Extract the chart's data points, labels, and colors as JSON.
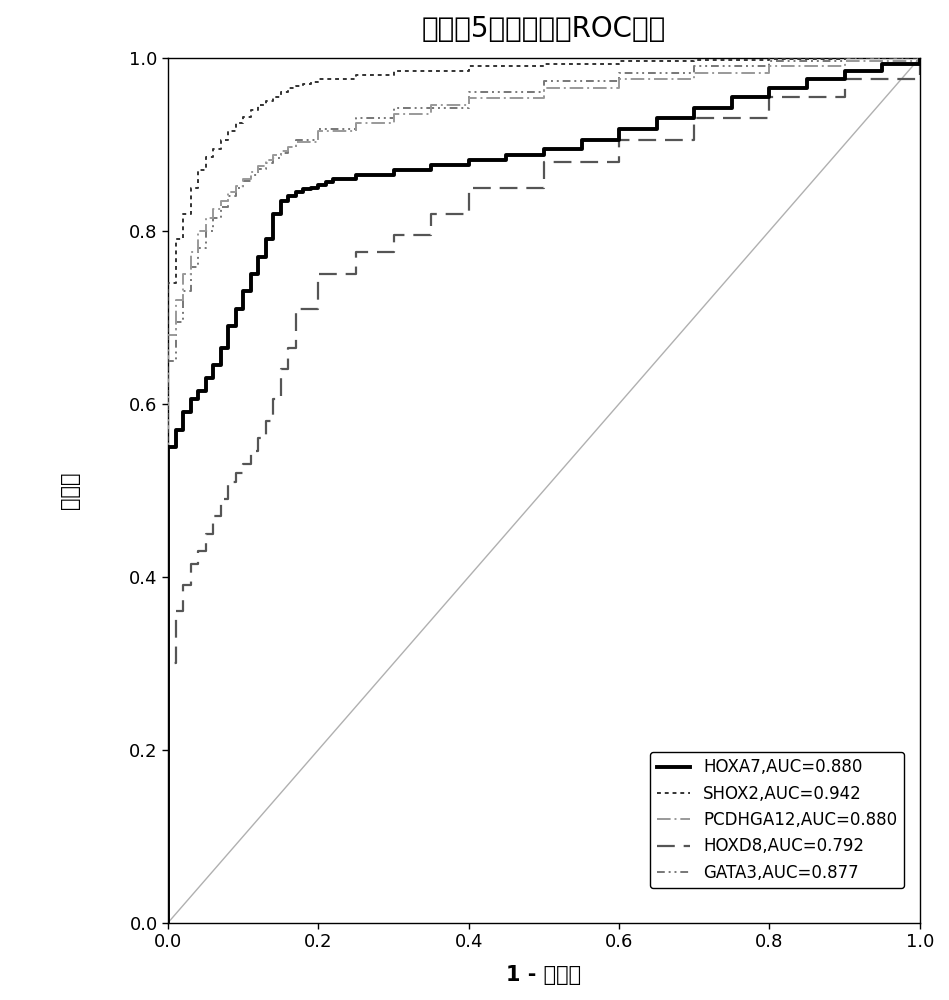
{
  "title": "组织中5个标志物的ROC曲线",
  "xlabel": "1 - 特异性",
  "ylabel_chars": [
    "敏",
    "感",
    "度"
  ],
  "xlim": [
    0.0,
    1.0
  ],
  "ylim": [
    0.0,
    1.0
  ],
  "xticks": [
    0.0,
    0.2,
    0.4,
    0.6,
    0.8,
    1.0
  ],
  "yticks": [
    0.0,
    0.2,
    0.4,
    0.6,
    0.8,
    1.0
  ],
  "background_color": "#ffffff",
  "hoxa7_x": [
    0.0,
    0.0,
    0.01,
    0.01,
    0.02,
    0.02,
    0.03,
    0.03,
    0.04,
    0.04,
    0.05,
    0.05,
    0.06,
    0.06,
    0.07,
    0.07,
    0.08,
    0.08,
    0.09,
    0.09,
    0.1,
    0.1,
    0.11,
    0.11,
    0.12,
    0.12,
    0.13,
    0.13,
    0.14,
    0.14,
    0.15,
    0.15,
    0.16,
    0.16,
    0.17,
    0.17,
    0.18,
    0.18,
    0.19,
    0.19,
    0.2,
    0.2,
    0.21,
    0.21,
    0.22,
    0.22,
    0.25,
    0.25,
    0.3,
    0.3,
    0.35,
    0.35,
    0.4,
    0.4,
    0.45,
    0.45,
    0.5,
    0.5,
    0.55,
    0.55,
    0.6,
    0.6,
    0.65,
    0.65,
    0.7,
    0.7,
    0.75,
    0.75,
    0.8,
    0.8,
    0.85,
    0.85,
    0.9,
    0.9,
    0.95,
    0.95,
    1.0,
    1.0
  ],
  "hoxa7_y": [
    0.0,
    0.55,
    0.55,
    0.57,
    0.57,
    0.59,
    0.59,
    0.605,
    0.605,
    0.615,
    0.615,
    0.63,
    0.63,
    0.645,
    0.645,
    0.665,
    0.665,
    0.69,
    0.69,
    0.71,
    0.71,
    0.73,
    0.73,
    0.75,
    0.75,
    0.77,
    0.77,
    0.79,
    0.79,
    0.82,
    0.82,
    0.835,
    0.835,
    0.84,
    0.84,
    0.845,
    0.845,
    0.848,
    0.848,
    0.85,
    0.85,
    0.853,
    0.853,
    0.856,
    0.856,
    0.86,
    0.86,
    0.865,
    0.865,
    0.87,
    0.87,
    0.876,
    0.876,
    0.882,
    0.882,
    0.888,
    0.888,
    0.895,
    0.895,
    0.905,
    0.905,
    0.918,
    0.918,
    0.93,
    0.93,
    0.942,
    0.942,
    0.955,
    0.955,
    0.965,
    0.965,
    0.975,
    0.975,
    0.985,
    0.985,
    0.993,
    0.993,
    1.0
  ],
  "shox2_x": [
    0.0,
    0.0,
    0.01,
    0.01,
    0.02,
    0.02,
    0.03,
    0.03,
    0.04,
    0.04,
    0.05,
    0.05,
    0.06,
    0.06,
    0.07,
    0.07,
    0.08,
    0.08,
    0.09,
    0.09,
    0.1,
    0.1,
    0.11,
    0.11,
    0.12,
    0.12,
    0.13,
    0.13,
    0.14,
    0.14,
    0.15,
    0.15,
    0.16,
    0.16,
    0.17,
    0.17,
    0.18,
    0.18,
    0.19,
    0.19,
    0.2,
    0.2,
    0.25,
    0.25,
    0.3,
    0.3,
    0.4,
    0.4,
    0.5,
    0.5,
    0.6,
    0.6,
    0.7,
    0.7,
    0.8,
    0.8,
    0.9,
    0.9,
    1.0,
    1.0
  ],
  "shox2_y": [
    0.0,
    0.74,
    0.74,
    0.79,
    0.79,
    0.82,
    0.82,
    0.85,
    0.85,
    0.87,
    0.87,
    0.885,
    0.885,
    0.895,
    0.895,
    0.905,
    0.905,
    0.915,
    0.915,
    0.925,
    0.925,
    0.932,
    0.932,
    0.94,
    0.94,
    0.945,
    0.945,
    0.95,
    0.95,
    0.955,
    0.955,
    0.96,
    0.96,
    0.965,
    0.965,
    0.968,
    0.968,
    0.97,
    0.97,
    0.972,
    0.972,
    0.975,
    0.975,
    0.98,
    0.98,
    0.985,
    0.985,
    0.99,
    0.99,
    0.993,
    0.993,
    0.996,
    0.996,
    0.998,
    0.998,
    0.999,
    0.999,
    1.0,
    1.0,
    1.0
  ],
  "pcdhga12_x": [
    0.0,
    0.0,
    0.01,
    0.01,
    0.02,
    0.02,
    0.03,
    0.03,
    0.04,
    0.04,
    0.05,
    0.05,
    0.06,
    0.06,
    0.07,
    0.07,
    0.08,
    0.08,
    0.09,
    0.09,
    0.1,
    0.1,
    0.11,
    0.11,
    0.12,
    0.12,
    0.13,
    0.13,
    0.14,
    0.14,
    0.15,
    0.15,
    0.16,
    0.16,
    0.17,
    0.17,
    0.2,
    0.2,
    0.25,
    0.25,
    0.3,
    0.3,
    0.35,
    0.35,
    0.4,
    0.4,
    0.5,
    0.5,
    0.6,
    0.6,
    0.7,
    0.7,
    0.8,
    0.8,
    0.9,
    0.9,
    1.0,
    1.0
  ],
  "pcdhga12_y": [
    0.0,
    0.68,
    0.68,
    0.72,
    0.72,
    0.75,
    0.75,
    0.775,
    0.775,
    0.8,
    0.8,
    0.815,
    0.815,
    0.825,
    0.825,
    0.835,
    0.835,
    0.845,
    0.845,
    0.852,
    0.852,
    0.86,
    0.86,
    0.868,
    0.868,
    0.875,
    0.875,
    0.882,
    0.882,
    0.888,
    0.888,
    0.892,
    0.892,
    0.897,
    0.897,
    0.903,
    0.903,
    0.915,
    0.915,
    0.925,
    0.925,
    0.935,
    0.935,
    0.945,
    0.945,
    0.953,
    0.953,
    0.965,
    0.965,
    0.975,
    0.975,
    0.983,
    0.983,
    0.99,
    0.99,
    0.996,
    0.996,
    1.0
  ],
  "hoxd8_x": [
    0.0,
    0.0,
    0.01,
    0.01,
    0.02,
    0.02,
    0.03,
    0.03,
    0.04,
    0.04,
    0.05,
    0.05,
    0.06,
    0.06,
    0.07,
    0.07,
    0.08,
    0.08,
    0.09,
    0.09,
    0.1,
    0.1,
    0.11,
    0.11,
    0.12,
    0.12,
    0.13,
    0.13,
    0.14,
    0.14,
    0.15,
    0.15,
    0.16,
    0.16,
    0.17,
    0.17,
    0.2,
    0.2,
    0.25,
    0.25,
    0.3,
    0.3,
    0.35,
    0.35,
    0.4,
    0.4,
    0.5,
    0.5,
    0.6,
    0.6,
    0.7,
    0.7,
    0.8,
    0.8,
    0.9,
    0.9,
    1.0,
    1.0
  ],
  "hoxd8_y": [
    0.0,
    0.3,
    0.3,
    0.36,
    0.36,
    0.39,
    0.39,
    0.415,
    0.415,
    0.43,
    0.43,
    0.45,
    0.45,
    0.47,
    0.47,
    0.49,
    0.49,
    0.51,
    0.51,
    0.52,
    0.52,
    0.53,
    0.53,
    0.545,
    0.545,
    0.56,
    0.56,
    0.58,
    0.58,
    0.605,
    0.605,
    0.64,
    0.64,
    0.665,
    0.665,
    0.71,
    0.71,
    0.75,
    0.75,
    0.775,
    0.775,
    0.795,
    0.795,
    0.82,
    0.82,
    0.85,
    0.85,
    0.88,
    0.88,
    0.905,
    0.905,
    0.93,
    0.93,
    0.955,
    0.955,
    0.975,
    0.975,
    1.0
  ],
  "gata3_x": [
    0.0,
    0.0,
    0.01,
    0.01,
    0.02,
    0.02,
    0.03,
    0.03,
    0.04,
    0.04,
    0.05,
    0.05,
    0.06,
    0.06,
    0.07,
    0.07,
    0.08,
    0.08,
    0.09,
    0.09,
    0.1,
    0.1,
    0.11,
    0.11,
    0.12,
    0.12,
    0.13,
    0.13,
    0.14,
    0.14,
    0.15,
    0.15,
    0.16,
    0.16,
    0.17,
    0.17,
    0.2,
    0.2,
    0.25,
    0.25,
    0.3,
    0.3,
    0.4,
    0.4,
    0.5,
    0.5,
    0.6,
    0.6,
    0.7,
    0.7,
    0.8,
    0.8,
    0.9,
    0.9,
    1.0,
    1.0
  ],
  "gata3_y": [
    0.0,
    0.65,
    0.65,
    0.695,
    0.695,
    0.73,
    0.73,
    0.758,
    0.758,
    0.78,
    0.78,
    0.8,
    0.8,
    0.815,
    0.815,
    0.828,
    0.828,
    0.84,
    0.84,
    0.85,
    0.85,
    0.858,
    0.858,
    0.865,
    0.865,
    0.872,
    0.872,
    0.878,
    0.878,
    0.884,
    0.884,
    0.89,
    0.89,
    0.897,
    0.897,
    0.905,
    0.905,
    0.918,
    0.918,
    0.93,
    0.93,
    0.942,
    0.942,
    0.96,
    0.96,
    0.973,
    0.973,
    0.982,
    0.982,
    0.99,
    0.99,
    0.996,
    0.996,
    1.0,
    1.0,
    1.0
  ]
}
